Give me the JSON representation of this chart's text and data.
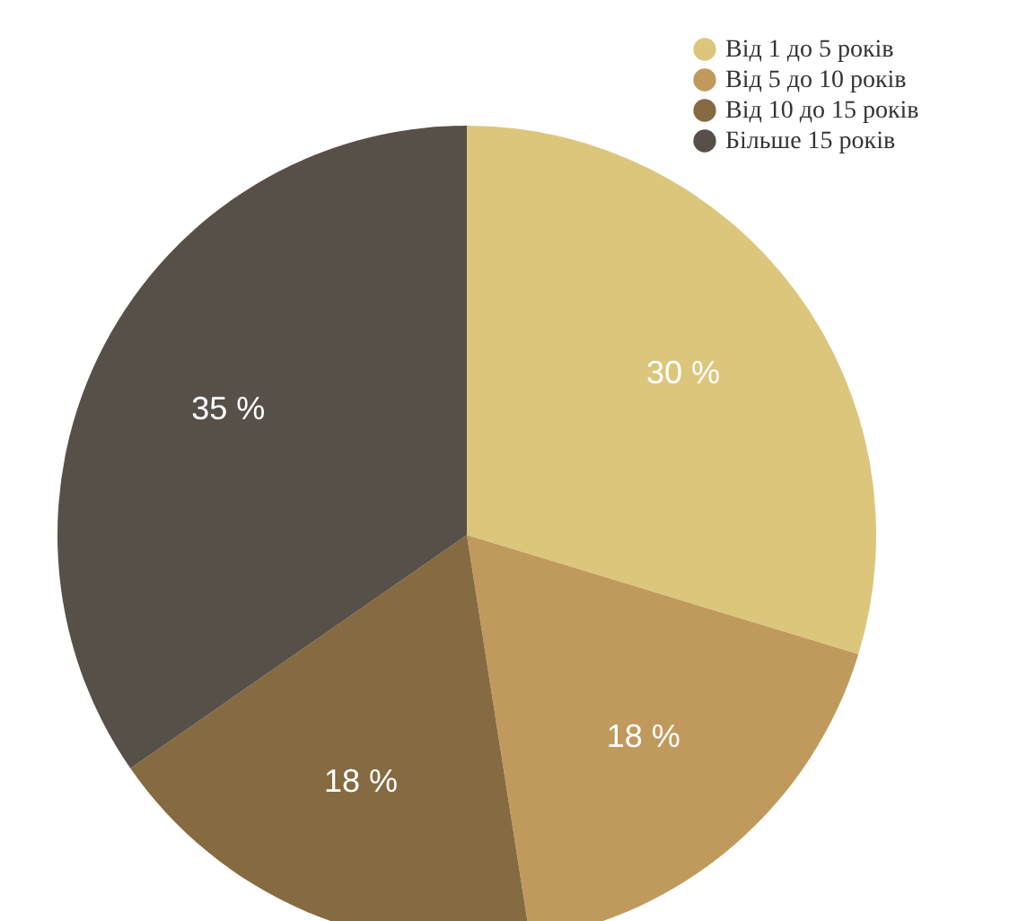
{
  "chart_data": {
    "type": "pie",
    "categories": [
      "Від 1 до 5 років",
      "Від 5 до 10 років",
      "Від 10 до 15 років",
      "Більше 15 років"
    ],
    "values": [
      30,
      18,
      18,
      35
    ],
    "colors": [
      "#dcc67c",
      "#c09a5c",
      "#856a42",
      "#575049"
    ],
    "value_labels": [
      "30 %",
      "18 %",
      "18 %",
      "35 %"
    ],
    "legend": "top right"
  }
}
